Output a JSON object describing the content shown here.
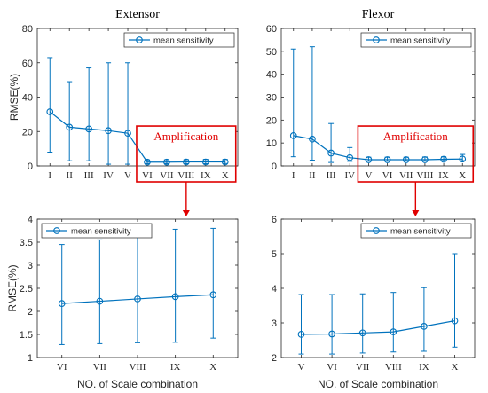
{
  "colors": {
    "series": "#0072BD",
    "highlight": "#E00000",
    "axis": "#262626",
    "text": "#262626",
    "title": "#000000"
  },
  "chart_data": [
    {
      "id": "extensor-top",
      "type": "line",
      "title": "Extensor",
      "xlabel": "",
      "ylabel": "RMSE(%)",
      "categories": [
        "I",
        "II",
        "III",
        "IV",
        "V",
        "VI",
        "VII",
        "VIII",
        "IX",
        "X"
      ],
      "ylim": [
        0,
        80
      ],
      "yticks": [
        "0",
        "20",
        "40",
        "60",
        "80"
      ],
      "legend": "top-right",
      "grid": false,
      "series": [
        {
          "name": "mean sensitivity",
          "values": [
            31.5,
            22.5,
            21.5,
            20.5,
            19.0,
            2.2,
            2.2,
            2.3,
            2.3,
            2.3
          ],
          "err_low": [
            8,
            3,
            3,
            1,
            1,
            1.3,
            1.3,
            1.3,
            1.3,
            1.4
          ],
          "err_high": [
            63,
            49,
            57,
            60,
            60,
            3.5,
            3.6,
            3.7,
            3.8,
            3.8
          ]
        }
      ],
      "annotation": {
        "text": "Amplification",
        "from_category": "VI",
        "to_category": "X"
      }
    },
    {
      "id": "flexor-top",
      "type": "line",
      "title": "Flexor",
      "xlabel": "",
      "ylabel": "",
      "categories": [
        "I",
        "II",
        "III",
        "IV",
        "V",
        "VI",
        "VII",
        "VIII",
        "IX",
        "X"
      ],
      "ylim": [
        0,
        60
      ],
      "yticks": [
        "0",
        "10",
        "20",
        "30",
        "40",
        "50",
        "60"
      ],
      "legend": "top-right",
      "grid": false,
      "series": [
        {
          "name": "mean sensitivity",
          "values": [
            13.2,
            11.7,
            5.6,
            3.6,
            2.7,
            2.7,
            2.7,
            2.7,
            2.9,
            3.0
          ],
          "err_low": [
            4,
            2.5,
            1.5,
            2,
            2.1,
            2.1,
            2.2,
            2.2,
            2.3,
            2.3
          ],
          "err_high": [
            51,
            52,
            18.5,
            8,
            3.8,
            3.8,
            3.8,
            3.9,
            4.0,
            5.0
          ]
        }
      ],
      "annotation": {
        "text": "Amplification",
        "from_category": "V",
        "to_category": "X"
      }
    },
    {
      "id": "extensor-bottom",
      "type": "line",
      "title": "",
      "xlabel": "NO. of Scale combination",
      "ylabel": "RMSE(%)",
      "categories": [
        "VI",
        "VII",
        "VIII",
        "IX",
        "X"
      ],
      "ylim": [
        1,
        4
      ],
      "yticks": [
        "1",
        "1.5",
        "2",
        "2.5",
        "3",
        "3.5",
        "4"
      ],
      "legend": "top-left",
      "grid": false,
      "series": [
        {
          "name": "mean sensitivity",
          "values": [
            2.17,
            2.22,
            2.27,
            2.32,
            2.36
          ],
          "err_low": [
            1.28,
            1.3,
            1.32,
            1.33,
            1.42
          ],
          "err_high": [
            3.45,
            3.55,
            3.65,
            3.78,
            3.8
          ]
        }
      ]
    },
    {
      "id": "flexor-bottom",
      "type": "line",
      "title": "",
      "xlabel": "NO. of Scale combination",
      "ylabel": "",
      "categories": [
        "V",
        "VI",
        "VII",
        "VIII",
        "IX",
        "X"
      ],
      "ylim": [
        2,
        6
      ],
      "yticks": [
        "2",
        "3",
        "4",
        "5",
        "6"
      ],
      "legend": "top-right",
      "grid": false,
      "series": [
        {
          "name": "mean sensitivity",
          "values": [
            2.67,
            2.68,
            2.71,
            2.74,
            2.9,
            3.06
          ],
          "err_low": [
            2.1,
            2.1,
            2.13,
            2.16,
            2.18,
            2.3
          ],
          "err_high": [
            3.82,
            3.82,
            3.84,
            3.88,
            4.02,
            5.0
          ]
        }
      ]
    }
  ]
}
